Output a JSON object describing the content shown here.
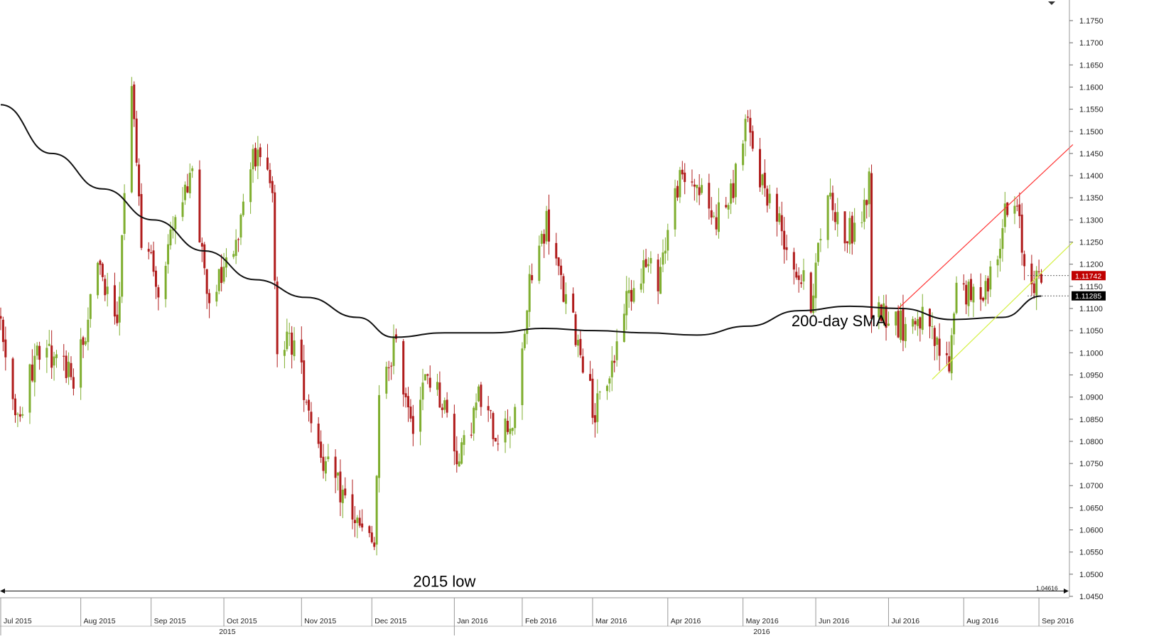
{
  "chart_data": {
    "type": "candlestick",
    "ylim": [
      1.045,
      1.1775
    ],
    "y_ticks": [
      "1.1750",
      "1.1700",
      "1.1650",
      "1.1600",
      "1.1550",
      "1.1500",
      "1.1450",
      "1.1400",
      "1.1350",
      "1.1300",
      "1.1250",
      "1.1200",
      "1.1150",
      "1.1100",
      "1.1050",
      "1.1000",
      "1.0950",
      "1.0900",
      "1.0850",
      "1.0800",
      "1.0750",
      "1.0700",
      "1.0650",
      "1.0600",
      "1.0550",
      "1.0500",
      "1.0450"
    ],
    "x_months": [
      {
        "label": "Jul 2015",
        "date": "2015-07-01"
      },
      {
        "label": "Aug 2015",
        "date": "2015-08-03"
      },
      {
        "label": "Sep 2015",
        "date": "2015-09-01"
      },
      {
        "label": "Oct 2015",
        "date": "2015-10-01"
      },
      {
        "label": "Nov 2015",
        "date": "2015-11-02"
      },
      {
        "label": "Dec 2015",
        "date": "2015-12-01"
      },
      {
        "label": "Jan 2016",
        "date": "2016-01-04"
      },
      {
        "label": "Feb 2016",
        "date": "2016-02-01"
      },
      {
        "label": "Mar 2016",
        "date": "2016-03-01"
      },
      {
        "label": "Apr 2016",
        "date": "2016-04-01"
      },
      {
        "label": "May 2016",
        "date": "2016-05-02"
      },
      {
        "label": "Jun 2016",
        "date": "2016-06-01"
      },
      {
        "label": "Jul 2016",
        "date": "2016-07-01"
      },
      {
        "label": "Aug 2016",
        "date": "2016-08-01"
      },
      {
        "label": "Sep 2016",
        "date": "2016-09-01"
      }
    ],
    "x_years": [
      {
        "label": "2015",
        "date": "2015-07-01"
      },
      {
        "label": "2016",
        "date": "2016-01-04"
      }
    ],
    "candle_anchors": [
      {
        "date": "2015-07-01",
        "close": 1.108
      },
      {
        "date": "2015-07-08",
        "close": 1.086
      },
      {
        "date": "2015-07-16",
        "close": 1.1
      },
      {
        "date": "2015-07-23",
        "close": 1.1
      },
      {
        "date": "2015-07-31",
        "close": 1.093
      },
      {
        "date": "2015-08-10",
        "close": 1.118
      },
      {
        "date": "2015-08-18",
        "close": 1.105
      },
      {
        "date": "2015-08-24",
        "close": 1.162
      },
      {
        "date": "2015-08-28",
        "close": 1.125
      },
      {
        "date": "2015-09-04",
        "close": 1.115
      },
      {
        "date": "2015-09-10",
        "close": 1.127
      },
      {
        "date": "2015-09-18",
        "close": 1.14
      },
      {
        "date": "2015-09-24",
        "close": 1.112
      },
      {
        "date": "2015-10-01",
        "close": 1.12
      },
      {
        "date": "2015-10-08",
        "close": 1.13
      },
      {
        "date": "2015-10-15",
        "close": 1.148
      },
      {
        "date": "2015-10-21",
        "close": 1.134
      },
      {
        "date": "2015-10-23",
        "close": 1.103
      },
      {
        "date": "2015-10-30",
        "close": 1.102
      },
      {
        "date": "2015-11-05",
        "close": 1.088
      },
      {
        "date": "2015-11-12",
        "close": 1.074
      },
      {
        "date": "2015-11-19",
        "close": 1.068
      },
      {
        "date": "2015-11-26",
        "close": 1.06
      },
      {
        "date": "2015-12-02",
        "close": 1.056
      },
      {
        "date": "2015-12-04",
        "close": 1.088
      },
      {
        "date": "2015-12-10",
        "close": 1.102
      },
      {
        "date": "2015-12-18",
        "close": 1.085
      },
      {
        "date": "2015-12-24",
        "close": 1.095
      },
      {
        "date": "2015-12-31",
        "close": 1.088
      },
      {
        "date": "2016-01-06",
        "close": 1.075
      },
      {
        "date": "2016-01-14",
        "close": 1.09
      },
      {
        "date": "2016-01-21",
        "close": 1.082
      },
      {
        "date": "2016-01-29",
        "close": 1.085
      },
      {
        "date": "2016-02-04",
        "close": 1.115
      },
      {
        "date": "2016-02-11",
        "close": 1.13
      },
      {
        "date": "2016-02-18",
        "close": 1.113
      },
      {
        "date": "2016-02-25",
        "close": 1.101
      },
      {
        "date": "2016-03-02",
        "close": 1.086
      },
      {
        "date": "2016-03-10",
        "close": 1.099
      },
      {
        "date": "2016-03-14",
        "close": 1.111
      },
      {
        "date": "2016-03-22",
        "close": 1.12
      },
      {
        "date": "2016-03-28",
        "close": 1.117
      },
      {
        "date": "2016-04-05",
        "close": 1.138
      },
      {
        "date": "2016-04-12",
        "close": 1.139
      },
      {
        "date": "2016-04-20",
        "close": 1.13
      },
      {
        "date": "2016-04-27",
        "close": 1.135
      },
      {
        "date": "2016-05-03",
        "close": 1.152
      },
      {
        "date": "2016-05-09",
        "close": 1.14
      },
      {
        "date": "2016-05-16",
        "close": 1.131
      },
      {
        "date": "2016-05-23",
        "close": 1.12
      },
      {
        "date": "2016-05-30",
        "close": 1.112
      },
      {
        "date": "2016-06-06",
        "close": 1.137
      },
      {
        "date": "2016-06-13",
        "close": 1.126
      },
      {
        "date": "2016-06-20",
        "close": 1.13
      },
      {
        "date": "2016-06-23",
        "close": 1.138
      },
      {
        "date": "2016-06-24",
        "close": 1.11
      },
      {
        "date": "2016-06-30",
        "close": 1.109
      },
      {
        "date": "2016-07-07",
        "close": 1.106
      },
      {
        "date": "2016-07-14",
        "close": 1.108
      },
      {
        "date": "2016-07-21",
        "close": 1.101
      },
      {
        "date": "2016-07-26",
        "close": 1.097
      },
      {
        "date": "2016-07-29",
        "close": 1.117
      },
      {
        "date": "2016-08-04",
        "close": 1.112
      },
      {
        "date": "2016-08-11",
        "close": 1.116
      },
      {
        "date": "2016-08-18",
        "close": 1.131
      },
      {
        "date": "2016-08-23",
        "close": 1.132
      },
      {
        "date": "2016-08-26",
        "close": 1.12
      },
      {
        "date": "2016-08-31",
        "close": 1.116
      },
      {
        "date": "2016-09-02",
        "close": 1.1175
      }
    ],
    "sma_200": [
      {
        "date": "2015-07-01",
        "value": 1.156
      },
      {
        "date": "2015-07-22",
        "value": 1.145
      },
      {
        "date": "2015-08-12",
        "value": 1.137
      },
      {
        "date": "2015-09-02",
        "value": 1.13
      },
      {
        "date": "2015-09-23",
        "value": 1.123
      },
      {
        "date": "2015-10-14",
        "value": 1.1165
      },
      {
        "date": "2015-11-04",
        "value": 1.1125
      },
      {
        "date": "2015-11-25",
        "value": 1.108
      },
      {
        "date": "2015-12-10",
        "value": 1.1035
      },
      {
        "date": "2015-12-31",
        "value": 1.1045
      },
      {
        "date": "2016-01-20",
        "value": 1.1045
      },
      {
        "date": "2016-02-10",
        "value": 1.1055
      },
      {
        "date": "2016-03-02",
        "value": 1.105
      },
      {
        "date": "2016-03-23",
        "value": 1.1045
      },
      {
        "date": "2016-04-13",
        "value": 1.104
      },
      {
        "date": "2016-05-04",
        "value": 1.106
      },
      {
        "date": "2016-05-25",
        "value": 1.1095
      },
      {
        "date": "2016-06-15",
        "value": 1.1105
      },
      {
        "date": "2016-07-06",
        "value": 1.11
      },
      {
        "date": "2016-07-27",
        "value": 1.1075
      },
      {
        "date": "2016-08-17",
        "value": 1.108
      },
      {
        "date": "2016-09-02",
        "value": 1.1128
      }
    ],
    "trendlines": [
      {
        "color": "#ff3333",
        "from": {
          "date": "2016-07-05",
          "value": 1.11
        },
        "to": {
          "date": "2016-09-15",
          "value": 1.147
        }
      },
      {
        "color": "#d4f040",
        "from": {
          "date": "2016-07-19",
          "value": 1.094
        },
        "to": {
          "date": "2016-09-15",
          "value": 1.125
        }
      }
    ],
    "reference_lines": [
      {
        "value": 1.0462,
        "label": "1.04616"
      }
    ],
    "price_tags": [
      {
        "value": 1.11742,
        "label": "1.11742",
        "color": "#c00000"
      },
      {
        "value": 1.11285,
        "label": "1.11285",
        "color": "#000000"
      }
    ],
    "annotations": [
      {
        "text": "200-day SMA",
        "date": "2016-05-22",
        "value": 1.106
      },
      {
        "text": "2015 low",
        "date": "2015-12-18",
        "value": 1.0472
      }
    ],
    "up_color": "#7fae2f",
    "down_color": "#b01c1c",
    "grid": false
  }
}
